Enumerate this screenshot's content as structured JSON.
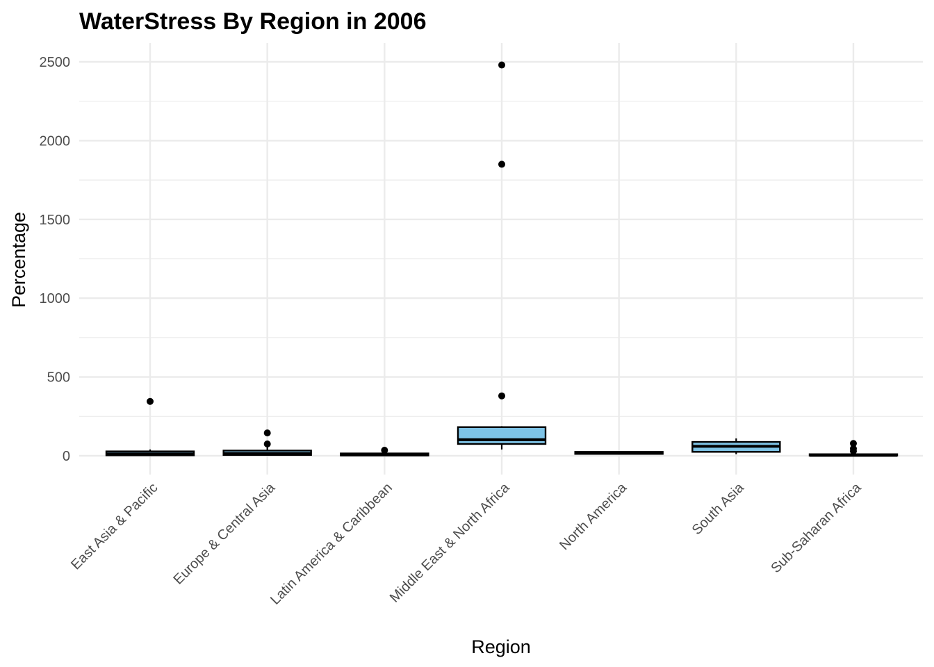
{
  "chart_data": {
    "type": "boxplot",
    "title": "WaterStress By Region in 2006",
    "xlabel": "Region",
    "ylabel": "Percentage",
    "ylim": [
      -10,
      2600
    ],
    "yticks": [
      0,
      500,
      1000,
      1500,
      2000,
      2500
    ],
    "grid": true,
    "legend": "none",
    "colors": {
      "box_fill": "#7ec3e6",
      "box_outline": "#000000",
      "grid": "#ebebeb",
      "points": "#000000"
    },
    "categories": [
      "East Asia & Pacific",
      "Europe & Central Asia",
      "Latin America & Caribbean",
      "Middle East & North Africa",
      "North America",
      "South Asia",
      "Sub-Saharan Africa"
    ],
    "boxes": [
      {
        "whisker_low": 0,
        "q1": 3,
        "median": 12,
        "q3": 28,
        "whisker_high": 40,
        "outliers": [
          345
        ]
      },
      {
        "whisker_low": 0,
        "q1": 5,
        "median": 14,
        "q3": 33,
        "whisker_high": 60,
        "outliers": [
          75,
          145
        ]
      },
      {
        "whisker_low": 0,
        "q1": 2,
        "median": 6,
        "q3": 15,
        "whisker_high": 24,
        "outliers": [
          35
        ]
      },
      {
        "whisker_low": 40,
        "q1": 75,
        "median": 102,
        "q3": 182,
        "whisker_high": 188,
        "outliers": [
          380,
          1850,
          2480
        ]
      },
      {
        "whisker_low": 10,
        "q1": 12,
        "median": 16,
        "q3": 25,
        "whisker_high": 28,
        "outliers": []
      },
      {
        "whisker_low": 10,
        "q1": 25,
        "median": 60,
        "q3": 88,
        "whisker_high": 110,
        "outliers": []
      },
      {
        "whisker_low": 0,
        "q1": 1,
        "median": 3,
        "q3": 10,
        "whisker_high": 18,
        "outliers": [
          30,
          45,
          78
        ]
      }
    ]
  }
}
